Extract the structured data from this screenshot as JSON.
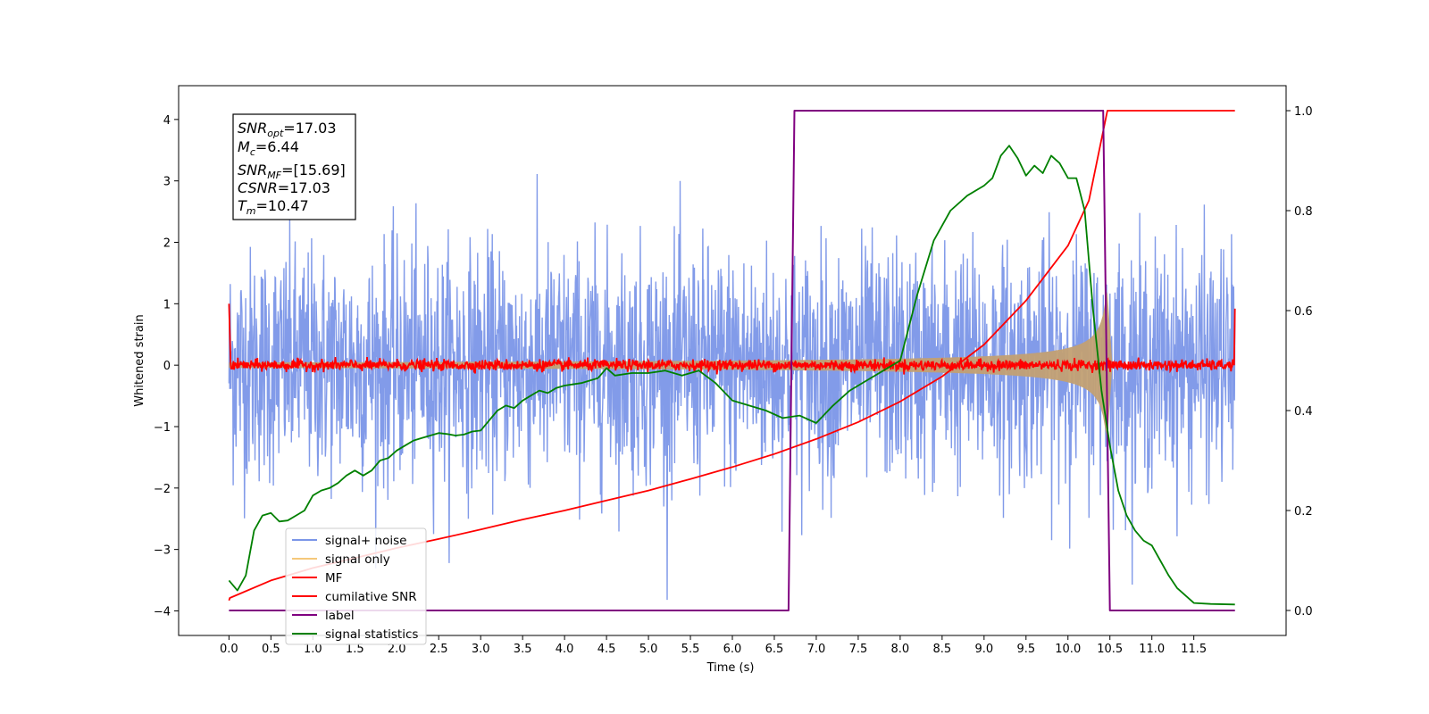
{
  "chart_data": {
    "type": "line",
    "xlabel": "Time (s)",
    "ylabel": "Whitened strain",
    "xlim": [
      -0.6,
      12.6
    ],
    "ylim": [
      -4.4,
      4.55
    ],
    "ylim_right": [
      -0.05,
      1.05
    ],
    "x_ticks": [
      "0.0",
      "0.5",
      "1.0",
      "1.5",
      "2.0",
      "2.5",
      "3.0",
      "3.5",
      "4.0",
      "4.5",
      "5.0",
      "5.5",
      "6.0",
      "6.5",
      "7.0",
      "7.5",
      "8.0",
      "8.5",
      "9.0",
      "9.5",
      "10.0",
      "10.5",
      "11.0",
      "11.5"
    ],
    "y_ticks_left": [
      "−4",
      "−3",
      "−2",
      "−1",
      "0",
      "1",
      "2",
      "3",
      "4"
    ],
    "y_ticks_right": [
      "0.0",
      "0.2",
      "0.4",
      "0.6",
      "0.8",
      "1.0"
    ],
    "legend_position": "lower-left",
    "info_box": {
      "snr_opt": "17.03",
      "mc": "6.44",
      "snr_mf": "[15.69]",
      "csnr": "17.03",
      "tm": "10.47"
    },
    "series": [
      {
        "name": "signal+ noise",
        "color": "#7b96e8",
        "axis": "left",
        "description": "whitened noise, approx ±2.5 std band with spikes to ±4"
      },
      {
        "name": "signal only",
        "color": "#f5c87a",
        "axis": "left",
        "description": "chirp envelope growing from 0 to ~±1.2 at 10.47 s"
      },
      {
        "name": "MF",
        "color": "#ff0000",
        "axis": "left",
        "description": "matched filter output near 0"
      },
      {
        "name": "cumilative SNR",
        "color": "#ff0000",
        "axis": "right",
        "x": [
          0.0,
          0.01,
          0.5,
          1.0,
          1.5,
          2.0,
          2.5,
          3.0,
          3.5,
          4.0,
          4.5,
          5.0,
          5.5,
          6.0,
          6.5,
          7.0,
          7.5,
          8.0,
          8.5,
          9.0,
          9.5,
          10.0,
          10.25,
          10.47,
          11.0,
          11.99
        ],
        "y": [
          0.02,
          0.025,
          0.06,
          0.085,
          0.105,
          0.125,
          0.143,
          0.162,
          0.182,
          0.2,
          0.22,
          0.24,
          0.263,
          0.287,
          0.313,
          0.343,
          0.377,
          0.418,
          0.468,
          0.532,
          0.62,
          0.73,
          0.82,
          1.0,
          1.0,
          1.0
        ]
      },
      {
        "name": "label",
        "color": "#800080",
        "axis": "right",
        "x": [
          0.0,
          6.67,
          6.74,
          10.42,
          10.5,
          11.99
        ],
        "y": [
          0.0,
          0.0,
          1.0,
          1.0,
          0.0,
          0.0
        ]
      },
      {
        "name": "signal statistics",
        "color": "#008000",
        "axis": "right",
        "x": [
          0.0,
          0.1,
          0.2,
          0.3,
          0.4,
          0.5,
          0.6,
          0.7,
          0.8,
          0.9,
          1.0,
          1.1,
          1.2,
          1.3,
          1.4,
          1.5,
          1.6,
          1.7,
          1.8,
          1.9,
          2.0,
          2.1,
          2.2,
          2.3,
          2.4,
          2.5,
          2.6,
          2.7,
          2.8,
          2.9,
          3.0,
          3.1,
          3.2,
          3.3,
          3.4,
          3.5,
          3.6,
          3.7,
          3.8,
          3.9,
          4.0,
          4.2,
          4.4,
          4.5,
          4.6,
          4.8,
          5.0,
          5.2,
          5.4,
          5.6,
          5.8,
          6.0,
          6.2,
          6.4,
          6.6,
          6.8,
          7.0,
          7.2,
          7.4,
          7.6,
          7.8,
          8.0,
          8.2,
          8.4,
          8.6,
          8.8,
          9.0,
          9.1,
          9.2,
          9.3,
          9.4,
          9.5,
          9.6,
          9.7,
          9.8,
          9.9,
          10.0,
          10.1,
          10.2,
          10.3,
          10.4,
          10.5,
          10.6,
          10.7,
          10.8,
          10.9,
          11.0,
          11.1,
          11.2,
          11.3,
          11.4,
          11.5,
          11.7,
          11.99
        ],
        "y": [
          0.06,
          0.04,
          0.07,
          0.16,
          0.19,
          0.195,
          0.178,
          0.18,
          0.19,
          0.2,
          0.23,
          0.24,
          0.245,
          0.255,
          0.27,
          0.28,
          0.27,
          0.28,
          0.3,
          0.305,
          0.32,
          0.33,
          0.34,
          0.345,
          0.35,
          0.355,
          0.353,
          0.35,
          0.352,
          0.358,
          0.36,
          0.38,
          0.4,
          0.41,
          0.405,
          0.42,
          0.43,
          0.44,
          0.435,
          0.445,
          0.45,
          0.455,
          0.465,
          0.485,
          0.47,
          0.475,
          0.475,
          0.48,
          0.47,
          0.48,
          0.455,
          0.42,
          0.41,
          0.4,
          0.385,
          0.39,
          0.375,
          0.41,
          0.44,
          0.46,
          0.48,
          0.5,
          0.63,
          0.74,
          0.8,
          0.83,
          0.85,
          0.865,
          0.91,
          0.93,
          0.905,
          0.87,
          0.89,
          0.875,
          0.91,
          0.895,
          0.865,
          0.865,
          0.8,
          0.6,
          0.44,
          0.33,
          0.24,
          0.19,
          0.16,
          0.14,
          0.13,
          0.1,
          0.07,
          0.045,
          0.03,
          0.015,
          0.013,
          0.012
        ]
      }
    ]
  }
}
